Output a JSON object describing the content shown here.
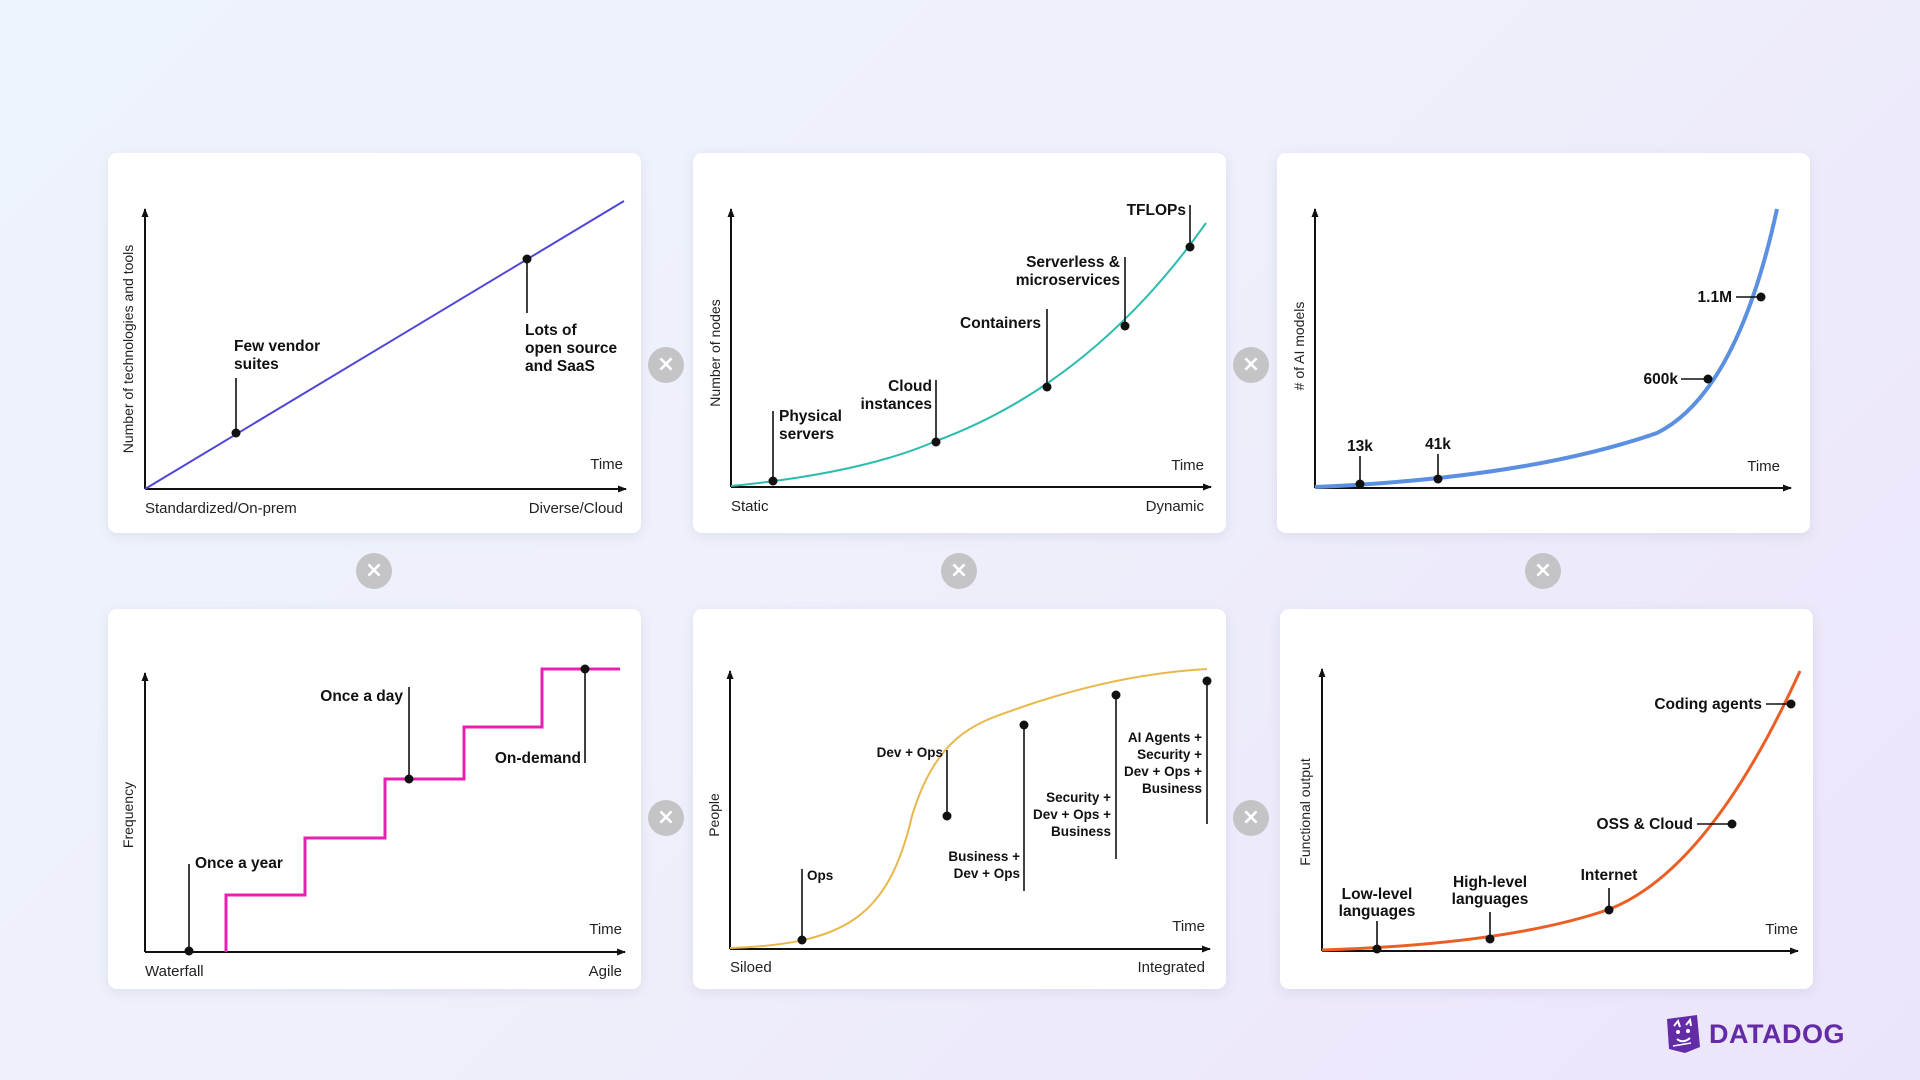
{
  "charts": [
    {
      "y_label": "Number of technologies and tools",
      "x_start": "Standardized/On-prem",
      "x_end": "Diverse/Cloud",
      "x_axis": "Time",
      "annotations": [
        {
          "lines": [
            "Few vendor",
            "suites"
          ]
        },
        {
          "lines": [
            "Lots of",
            "open source",
            "and SaaS"
          ]
        }
      ],
      "color": "#4f46d6"
    },
    {
      "y_label": "Number of nodes",
      "x_start": "Static",
      "x_end": "Dynamic",
      "x_axis": "Time",
      "annotations": [
        {
          "lines": [
            "Physical",
            "servers"
          ]
        },
        {
          "lines": [
            "Cloud",
            "instances"
          ]
        },
        {
          "lines": [
            "Containers"
          ]
        },
        {
          "lines": [
            "Serverless &",
            "microservices"
          ]
        },
        {
          "lines": [
            "TFLOPs"
          ]
        }
      ],
      "color": "#2bbcae"
    },
    {
      "y_label": "# of AI models",
      "x_axis": "Time",
      "annotations": [
        {
          "lines": [
            "13k"
          ]
        },
        {
          "lines": [
            "41k"
          ]
        },
        {
          "lines": [
            "600k"
          ]
        },
        {
          "lines": [
            "1.1M"
          ]
        }
      ],
      "color": "#5b8fe0"
    },
    {
      "y_label": "Frequency",
      "x_start": "Waterfall",
      "x_end": "Agile",
      "x_axis": "Time",
      "annotations": [
        {
          "lines": [
            "Once a year"
          ]
        },
        {
          "lines": [
            "Once a day"
          ]
        },
        {
          "lines": [
            "On-demand"
          ]
        }
      ],
      "color": "#e81fb1"
    },
    {
      "y_label": "People",
      "x_start": "Siloed",
      "x_end": "Integrated",
      "x_axis": "Time",
      "annotations": [
        {
          "lines": [
            "Ops"
          ]
        },
        {
          "lines": [
            "Dev + Ops"
          ]
        },
        {
          "lines": [
            "Business +",
            "Dev + Ops"
          ]
        },
        {
          "lines": [
            "Security +",
            "Dev + Ops +",
            "Business"
          ]
        },
        {
          "lines": [
            "AI Agents +",
            "Security +",
            "Dev + Ops +",
            "Business"
          ]
        }
      ],
      "color": "#e9b84a"
    },
    {
      "y_label": "Functional output",
      "x_axis": "Time",
      "annotations": [
        {
          "lines": [
            "Low-level",
            "languages"
          ]
        },
        {
          "lines": [
            "High-level",
            "languages"
          ]
        },
        {
          "lines": [
            "Internet"
          ]
        },
        {
          "lines": [
            "OSS & Cloud"
          ]
        },
        {
          "lines": [
            "Coding agents"
          ]
        }
      ],
      "color": "#ec5f24"
    }
  ],
  "operators": [
    "×",
    "×",
    "×",
    "×",
    "×",
    "×",
    "×"
  ],
  "logo": {
    "text": "DATADOG",
    "color": "#632ca6"
  }
}
